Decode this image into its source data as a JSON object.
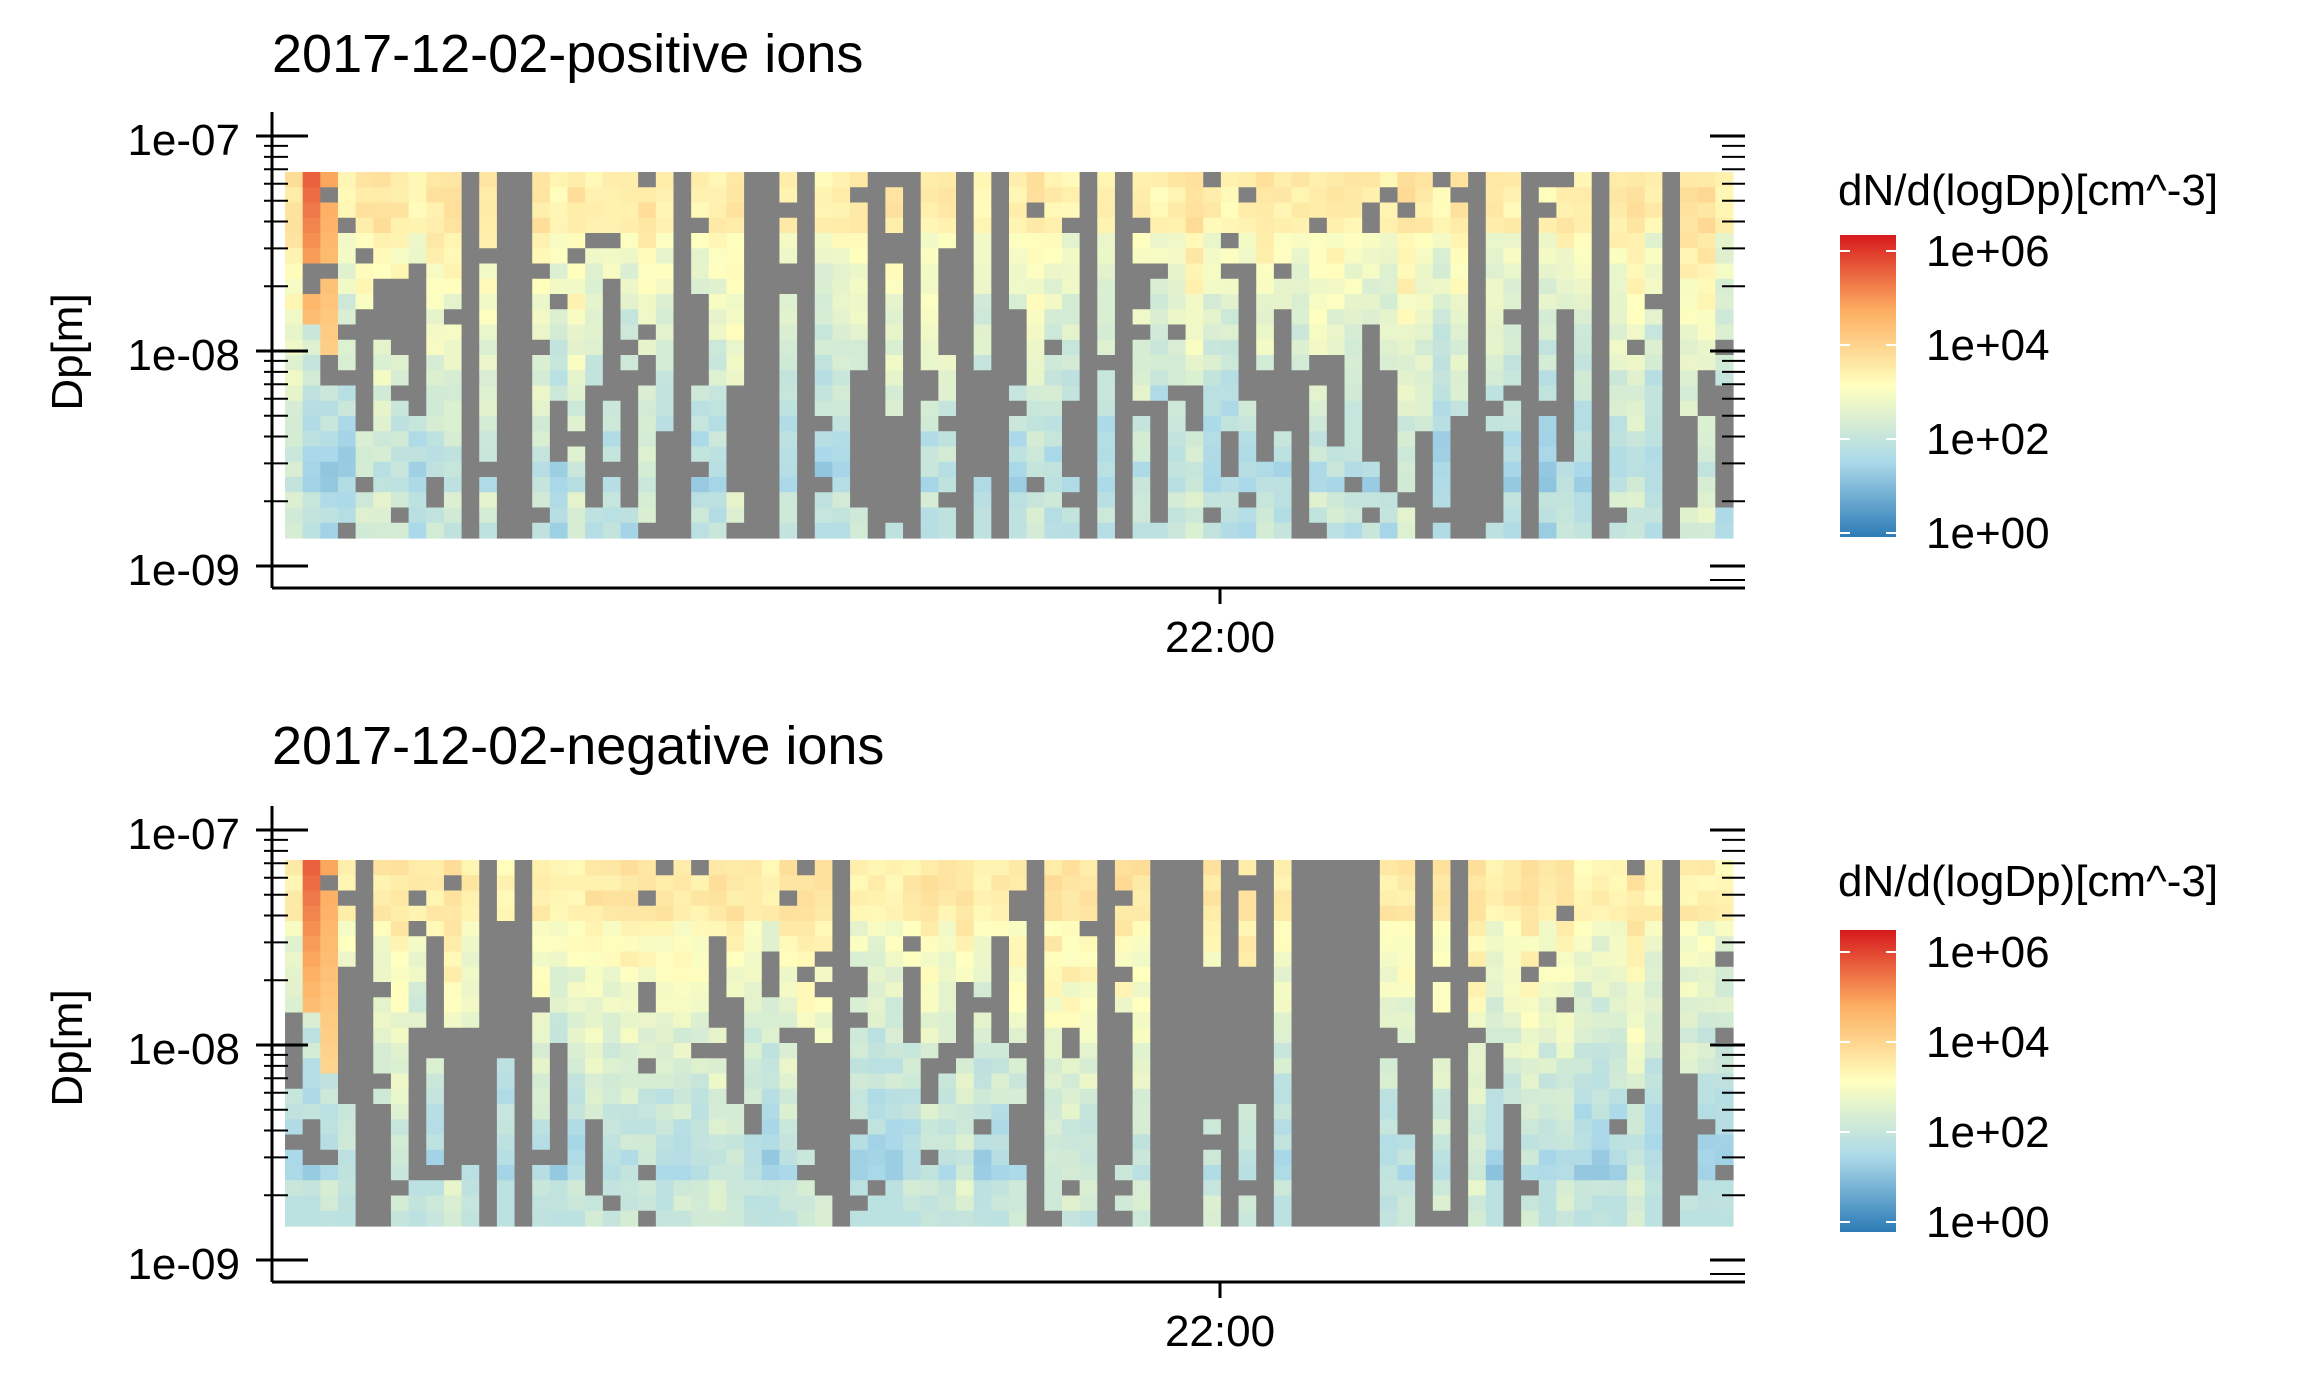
{
  "colors": {
    "missing": "#808080",
    "scale": [
      "#2c7bb6",
      "#abd9e9",
      "#ffffbf",
      "#fdae61",
      "#d7191c"
    ]
  },
  "chart_data": [
    {
      "type": "heatmap",
      "title": "2017-12-02-positive ions",
      "xlabel": "",
      "ylabel": "Dp[m]",
      "y_scale": "log",
      "y_ticks": [
        "1e-07",
        "1e-08",
        "1e-09"
      ],
      "x_ticks": [
        "22:00"
      ],
      "legend_title": "dN/d(logDp)[cm^-3]",
      "legend_labels": [
        "1e+06",
        "1e+04",
        "1e+02",
        "1e+00"
      ],
      "legend_position": "right",
      "color_scale": "RdYlBu (log)",
      "value_range": [
        "1e+00",
        "1e+06"
      ]
    },
    {
      "type": "heatmap",
      "title": "2017-12-02-negative ions",
      "xlabel": "",
      "ylabel": "Dp[m]",
      "y_scale": "log",
      "y_ticks": [
        "1e-07",
        "1e-08",
        "1e-09"
      ],
      "x_ticks": [
        "22:00"
      ],
      "legend_title": "dN/d(logDp)[cm^-3]",
      "legend_labels": [
        "1e+06",
        "1e+04",
        "1e+02",
        "1e+00"
      ],
      "legend_position": "right",
      "color_scale": "RdYlBu (log)",
      "value_range": [
        "1e+00",
        "1e+06"
      ]
    }
  ]
}
